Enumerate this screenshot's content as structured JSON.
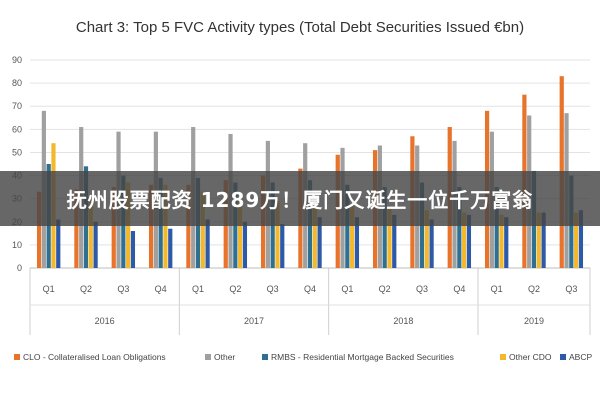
{
  "overlay_text": "抚州股票配资 1289万！厦门又诞生一位千万富翁",
  "chart_data": {
    "type": "bar",
    "title": "Chart 3: Top 5 FVC Activity types (Total Debt Securities Issued €bn)",
    "xlabel": "",
    "ylabel": "",
    "ylim": [
      0,
      90
    ],
    "yticks": [
      0,
      10,
      20,
      30,
      40,
      50,
      60,
      70,
      80,
      90
    ],
    "grid": true,
    "legend_position": "bottom",
    "categories": [
      "Q1",
      "Q2",
      "Q3",
      "Q4",
      "Q1",
      "Q2",
      "Q3",
      "Q4",
      "Q1",
      "Q2",
      "Q3",
      "Q4",
      "Q1",
      "Q2",
      "Q3"
    ],
    "groups": [
      {
        "label": "2016",
        "span": 4
      },
      {
        "label": "2017",
        "span": 4
      },
      {
        "label": "2018",
        "span": 4
      },
      {
        "label": "2019",
        "span": 3
      }
    ],
    "series": [
      {
        "name": "CLO - Collateralised Loan Obligations",
        "color": "#e8742c",
        "values": [
          33,
          34,
          35,
          36,
          36,
          38,
          40,
          43,
          49,
          51,
          57,
          61,
          68,
          75,
          83
        ]
      },
      {
        "name": "Other",
        "color": "#a0a0a0",
        "values": [
          68,
          61,
          59,
          59,
          61,
          58,
          55,
          54,
          52,
          53,
          53,
          55,
          59,
          66,
          67
        ]
      },
      {
        "name": "RMBS - Residential Mortgage Backed Securities",
        "color": "#2f6f8f",
        "values": [
          45,
          44,
          40,
          39,
          39,
          37,
          37,
          38,
          36,
          35,
          37,
          35,
          35,
          42,
          40
        ]
      },
      {
        "name": "Other CDO",
        "color": "#f4b82c",
        "values": [
          54,
          30,
          37,
          36,
          33,
          30,
          29,
          28,
          27,
          26,
          25,
          24,
          23,
          24,
          24
        ]
      },
      {
        "name": "ABCP",
        "color": "#2d5aa8",
        "values": [
          21,
          20,
          16,
          17,
          21,
          20,
          19,
          22,
          22,
          23,
          21,
          23,
          22,
          24,
          25
        ]
      }
    ]
  }
}
